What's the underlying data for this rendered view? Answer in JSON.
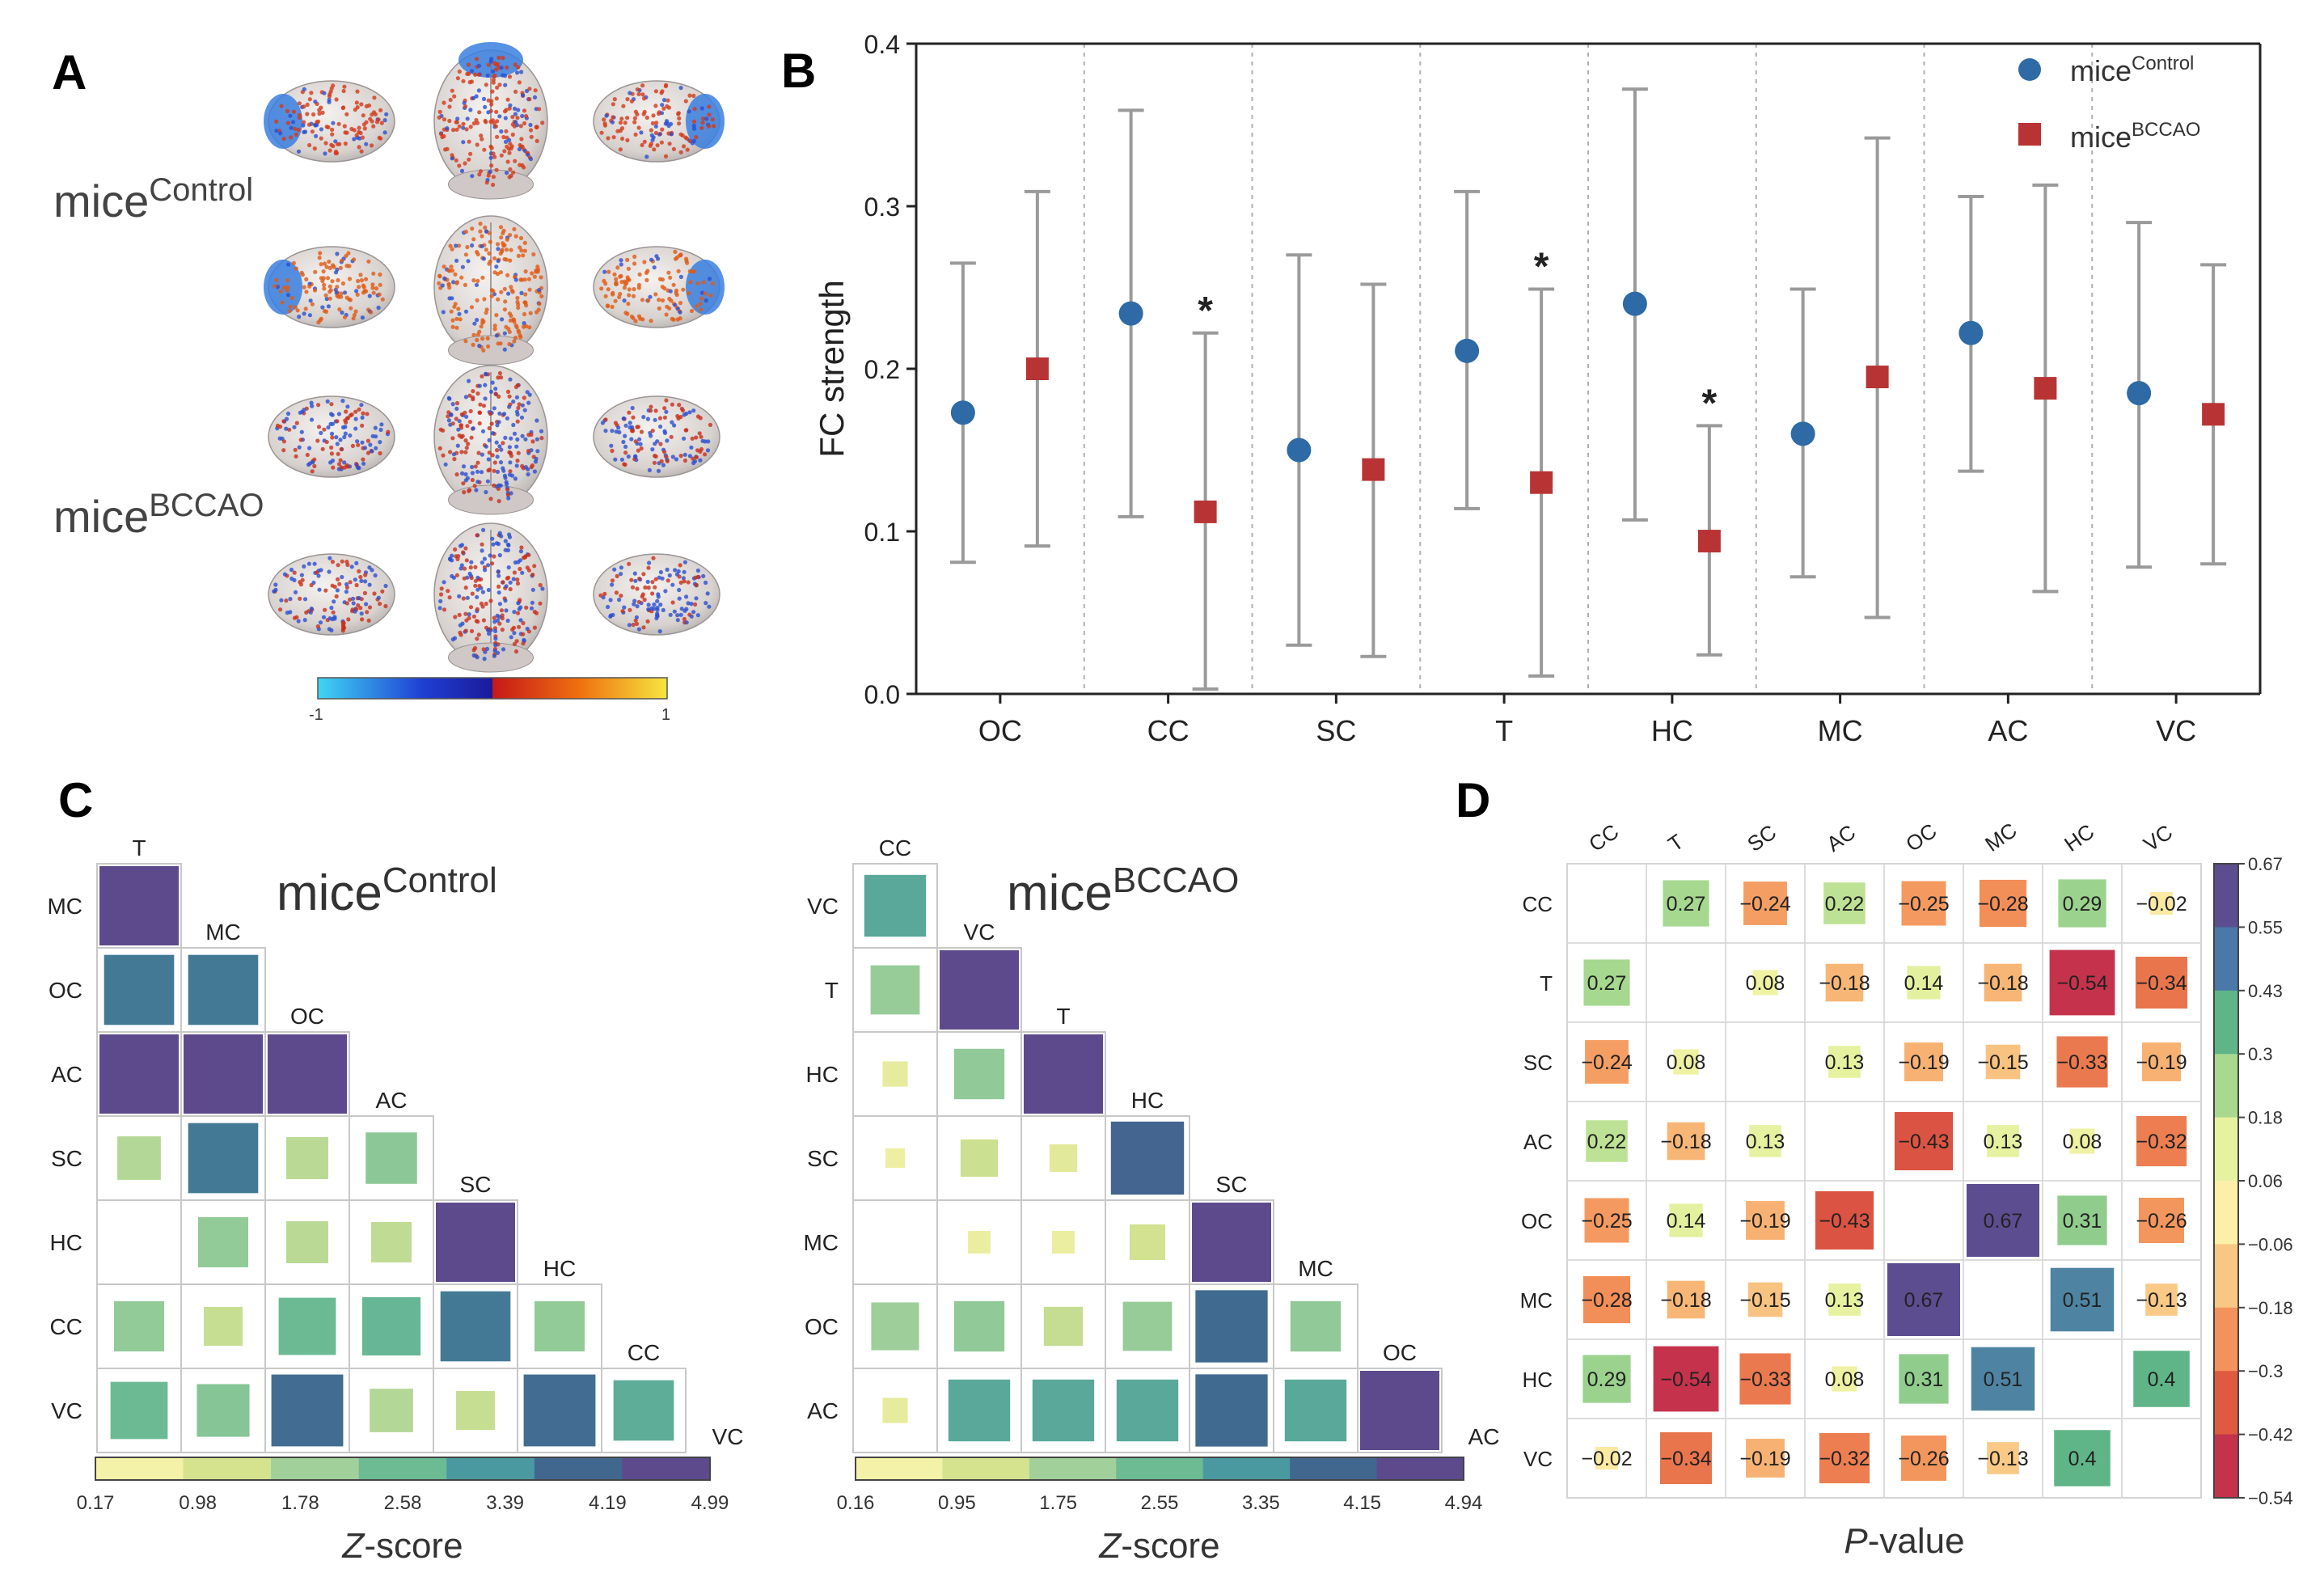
{
  "panels": {
    "a": "A",
    "b": "B",
    "c": "C",
    "d": "D"
  },
  "groups": {
    "control": {
      "base": "mice",
      "sup": "Control"
    },
    "bccao": {
      "base": "mice",
      "sup": "BCCAO"
    }
  },
  "colors": {
    "control": "#2e6aa6",
    "bccao": "#b83434",
    "errorbar": "#9a9a9a",
    "viridis": [
      "#f4f1a8",
      "#d5e38f",
      "#a1d09a",
      "#6cbb93",
      "#4a99a0",
      "#41678f",
      "#5c4a8c"
    ],
    "diverging": [
      "#c4334b",
      "#e05a40",
      "#f3925a",
      "#f9c784",
      "#fcefa8",
      "#e7f2a0",
      "#a8d98f",
      "#5fb588",
      "#4a78a8",
      "#5b4d90"
    ],
    "brain_scale": [
      "#3fd6f3",
      "#1f3fd3",
      "#1a1a9a",
      "#c51818",
      "#f07010",
      "#f6e640"
    ]
  },
  "brain_scale": {
    "min": "-1",
    "max": "1"
  },
  "chart_data": [
    {
      "id": "B",
      "type": "scatter",
      "title": "",
      "ylabel": "FC strength",
      "ylim": [
        0,
        0.4
      ],
      "yticks": [
        "0.0",
        "0.1",
        "0.2",
        "0.3",
        "0.4"
      ],
      "categories": [
        "OC",
        "CC",
        "SC",
        "T",
        "HC",
        "MC",
        "AC",
        "VC"
      ],
      "legend": [
        "mice|Control",
        "mice|BCCAO"
      ],
      "legend_position": "top-right",
      "significance_marker": "*",
      "series": [
        {
          "name": "miceControl",
          "values": [
            0.173,
            0.234,
            0.15,
            0.211,
            0.24,
            0.16,
            0.222,
            0.185
          ],
          "low": [
            0.081,
            0.109,
            0.03,
            0.114,
            0.107,
            0.072,
            0.137,
            0.078
          ],
          "high": [
            0.265,
            0.359,
            0.27,
            0.309,
            0.372,
            0.249,
            0.306,
            0.29
          ],
          "significant": [
            false,
            false,
            false,
            false,
            false,
            false,
            false,
            false
          ]
        },
        {
          "name": "miceBCCAO",
          "values": [
            0.2,
            0.112,
            0.138,
            0.13,
            0.094,
            0.195,
            0.188,
            0.172
          ],
          "low": [
            0.091,
            0.003,
            0.023,
            0.011,
            0.024,
            0.047,
            0.063,
            0.08
          ],
          "high": [
            0.309,
            0.222,
            0.252,
            0.249,
            0.165,
            0.342,
            0.313,
            0.264
          ],
          "significant": [
            false,
            true,
            false,
            true,
            true,
            false,
            false,
            false
          ]
        }
      ]
    },
    {
      "id": "C-control",
      "type": "heatmap",
      "group": "control",
      "colorbar_label": "Z-score",
      "colorbar_ticks": [
        "0.17",
        "0.98",
        "1.78",
        "2.58",
        "3.39",
        "4.19",
        "4.99"
      ],
      "zmin": 0.17,
      "zmax": 4.99,
      "order": [
        "T",
        "MC",
        "OC",
        "AC",
        "SC",
        "HC",
        "CC",
        "VC"
      ],
      "rows": [
        {
          "label": "MC",
          "values": [
            4.99
          ]
        },
        {
          "label": "OC",
          "values": [
            3.9,
            3.9
          ]
        },
        {
          "label": "AC",
          "values": [
            4.99,
            4.99,
            4.99
          ]
        },
        {
          "label": "SC",
          "values": [
            1.5,
            3.9,
            1.4,
            2.1
          ]
        },
        {
          "label": "HC",
          "values": [
            0,
            2.0,
            1.4,
            1.3,
            4.99
          ]
        },
        {
          "label": "CC",
          "values": [
            2.0,
            1.2,
            2.6,
            2.7,
            3.9,
            2.0
          ]
        },
        {
          "label": "VC",
          "values": [
            2.6,
            2.2,
            4.1,
            1.5,
            1.2,
            4.1,
            2.9
          ]
        }
      ]
    },
    {
      "id": "C-bccao",
      "type": "heatmap",
      "group": "bccao",
      "colorbar_label": "Z-score",
      "colorbar_ticks": [
        "0.16",
        "0.95",
        "1.75",
        "2.55",
        "3.35",
        "4.15",
        "4.94"
      ],
      "zmin": 0.16,
      "zmax": 4.94,
      "order": [
        "CC",
        "VC",
        "T",
        "HC",
        "SC",
        "MC",
        "OC",
        "AC"
      ],
      "rows": [
        {
          "label": "VC",
          "values": [
            3.0
          ]
        },
        {
          "label": "T",
          "values": [
            1.9,
            4.94
          ]
        },
        {
          "label": "HC",
          "values": [
            0.5,
            2.0,
            4.94
          ]
        },
        {
          "label": "SC",
          "values": [
            0.3,
            1.1,
            0.6,
            4.2
          ]
        },
        {
          "label": "MC",
          "values": [
            0,
            0.4,
            0.4,
            1.0,
            4.94
          ]
        },
        {
          "label": "OC",
          "values": [
            1.8,
            2.0,
            1.2,
            1.9,
            4.1,
            2.0
          ]
        },
        {
          "label": "AC",
          "values": [
            0.5,
            3.0,
            3.0,
            3.0,
            4.1,
            3.0,
            4.94
          ]
        }
      ]
    },
    {
      "id": "D",
      "type": "heatmap",
      "colorbar_label_prefix": "P",
      "colorbar_label_suffix": "-value",
      "colorbar_ticks": [
        "0.67",
        "0.55",
        "0.43",
        "0.3",
        "0.18",
        "0.06",
        "-0.06",
        "-0.18",
        "-0.3",
        "-0.42",
        "-0.54"
      ],
      "vmin": -0.54,
      "vmax": 0.67,
      "labels": [
        "CC",
        "T",
        "SC",
        "AC",
        "OC",
        "MC",
        "HC",
        "VC"
      ],
      "matrix": [
        [
          null,
          0.27,
          -0.24,
          0.22,
          -0.25,
          -0.28,
          0.29,
          -0.02
        ],
        [
          0.27,
          null,
          0.08,
          -0.18,
          0.14,
          -0.18,
          -0.54,
          -0.34
        ],
        [
          -0.24,
          0.08,
          null,
          0.13,
          -0.19,
          -0.15,
          -0.33,
          -0.19
        ],
        [
          0.22,
          -0.18,
          0.13,
          null,
          -0.43,
          0.13,
          0.08,
          -0.32
        ],
        [
          -0.25,
          0.14,
          -0.19,
          -0.43,
          null,
          0.67,
          0.31,
          -0.26
        ],
        [
          -0.28,
          -0.18,
          -0.15,
          0.13,
          0.67,
          null,
          0.51,
          -0.13
        ],
        [
          0.29,
          -0.54,
          -0.33,
          0.08,
          0.31,
          0.51,
          null,
          0.4
        ],
        [
          -0.02,
          -0.34,
          -0.19,
          -0.32,
          -0.26,
          -0.13,
          0.4,
          null
        ]
      ]
    }
  ]
}
